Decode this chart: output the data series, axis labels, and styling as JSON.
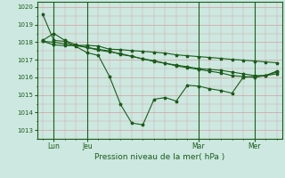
{
  "background_color": "#cce8e0",
  "grid_color": "#d4a0a0",
  "line_color": "#1a5c1a",
  "xlabel": "Pression niveau de la mer( hPa )",
  "ylim": [
    1012.5,
    1020.3
  ],
  "yticks": [
    1013,
    1014,
    1015,
    1016,
    1017,
    1018,
    1019,
    1020
  ],
  "series1": [
    1019.6,
    1018.1,
    1018.05,
    1017.75,
    1017.4,
    1017.25,
    1016.05,
    1014.45,
    1013.4,
    1013.3,
    1014.75,
    1014.85,
    1014.65,
    1015.55,
    1015.5,
    1015.35,
    1015.25,
    1015.1,
    1016.0,
    1016.05,
    1016.1,
    1016.35
  ],
  "series2": [
    1018.1,
    1018.5,
    1018.1,
    1017.85,
    1017.7,
    1017.6,
    1017.5,
    1017.3,
    1017.2,
    1017.05,
    1016.9,
    1016.8,
    1016.65,
    1016.55,
    1016.45,
    1016.35,
    1016.25,
    1016.1,
    1016.05,
    1016.0,
    1016.1,
    1016.2
  ],
  "series3": [
    1018.05,
    1018.0,
    1017.9,
    1017.8,
    1017.7,
    1017.55,
    1017.45,
    1017.35,
    1017.2,
    1017.05,
    1016.95,
    1016.8,
    1016.7,
    1016.6,
    1016.5,
    1016.45,
    1016.4,
    1016.3,
    1016.2,
    1016.1,
    1016.1,
    1016.3
  ],
  "series4": [
    1018.05,
    1017.85,
    1017.8,
    1017.82,
    1017.82,
    1017.78,
    1017.6,
    1017.58,
    1017.52,
    1017.48,
    1017.43,
    1017.38,
    1017.28,
    1017.23,
    1017.18,
    1017.13,
    1017.08,
    1017.02,
    1016.98,
    1016.93,
    1016.88,
    1016.83
  ],
  "n_points": 22,
  "xtick_positions": [
    1,
    4,
    14,
    19
  ],
  "xtick_labels": [
    "Lun",
    "Jeu",
    "Mar",
    "Mer"
  ],
  "vline_positions": [
    1,
    4,
    14,
    19
  ]
}
